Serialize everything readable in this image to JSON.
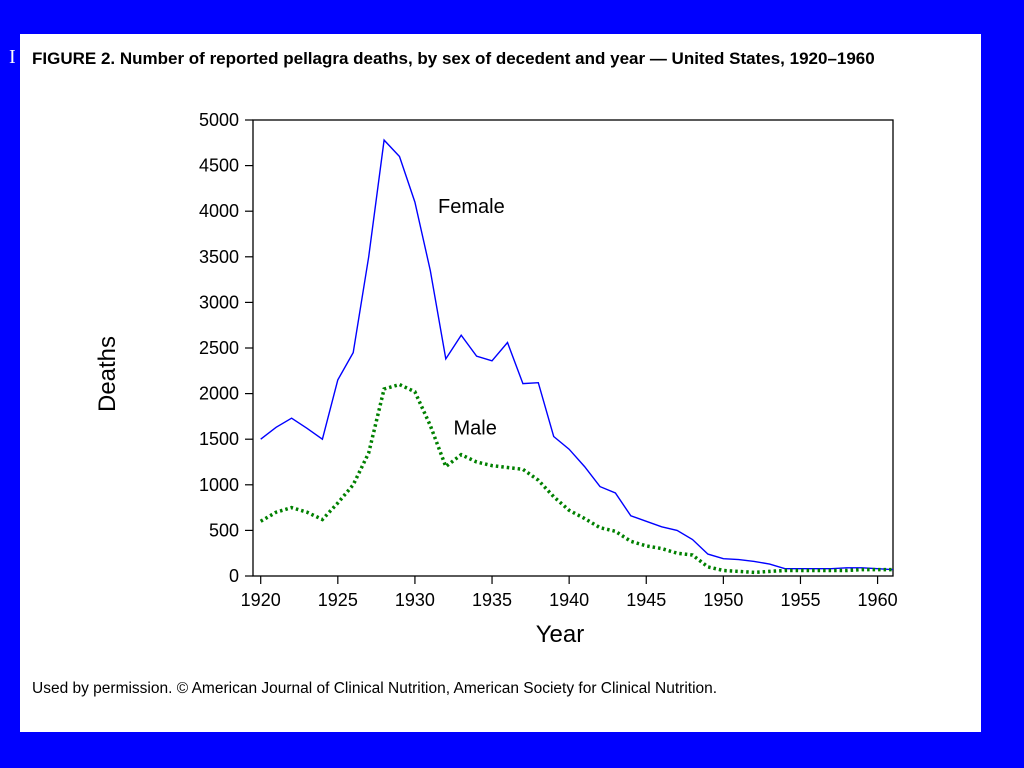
{
  "slide": {
    "background_color": "#0000ff",
    "marker_text": "I"
  },
  "figure": {
    "title": "FIGURE 2. Number of reported pellagra deaths, by sex of decedent and year — United States, 1920–1960",
    "footnote": "Used by permission. © American Journal of Clinical Nutrition, American Society for Clinical Nutrition."
  },
  "chart_data": {
    "type": "line",
    "title": "FIGURE 2. Number of reported pellagra deaths, by sex of decedent and year — United States, 1920–1960",
    "xlabel": "Year",
    "ylabel": "Deaths",
    "xlim": [
      1919.5,
      1961
    ],
    "ylim": [
      0,
      5000
    ],
    "xticks": [
      1920,
      1925,
      1930,
      1935,
      1940,
      1945,
      1950,
      1955,
      1960
    ],
    "yticks": [
      0,
      500,
      1000,
      1500,
      2000,
      2500,
      3000,
      3500,
      4000,
      4500,
      5000
    ],
    "grid": false,
    "legend": "inline labels",
    "x": [
      1920,
      1921,
      1922,
      1923,
      1924,
      1925,
      1926,
      1927,
      1928,
      1929,
      1930,
      1931,
      1932,
      1933,
      1934,
      1935,
      1936,
      1937,
      1938,
      1939,
      1940,
      1941,
      1942,
      1943,
      1944,
      1945,
      1946,
      1947,
      1948,
      1949,
      1950,
      1951,
      1952,
      1953,
      1954,
      1955,
      1956,
      1957,
      1958,
      1959,
      1960,
      1961
    ],
    "series": [
      {
        "name": "Female",
        "color": "#0000ff",
        "style": "solid",
        "label_position": {
          "x": 1931.5,
          "y": 3980
        },
        "values": [
          1500,
          1630,
          1730,
          1620,
          1500,
          2150,
          2450,
          3500,
          4780,
          4600,
          4100,
          3350,
          2380,
          2640,
          2410,
          2360,
          2560,
          2110,
          2120,
          1530,
          1390,
          1200,
          980,
          910,
          660,
          600,
          540,
          500,
          400,
          240,
          190,
          180,
          160,
          130,
          80,
          80,
          80,
          80,
          90,
          90,
          80,
          70
        ]
      },
      {
        "name": "Male",
        "color": "#008000",
        "style": "dotted",
        "label_position": {
          "x": 1932.5,
          "y": 1550
        },
        "values": [
          600,
          700,
          750,
          700,
          620,
          800,
          1000,
          1350,
          2050,
          2100,
          2020,
          1650,
          1200,
          1330,
          1250,
          1210,
          1190,
          1170,
          1050,
          870,
          720,
          630,
          530,
          490,
          380,
          330,
          300,
          250,
          230,
          100,
          60,
          50,
          40,
          50,
          60,
          60,
          60,
          60,
          60,
          70,
          70,
          70
        ]
      }
    ]
  }
}
